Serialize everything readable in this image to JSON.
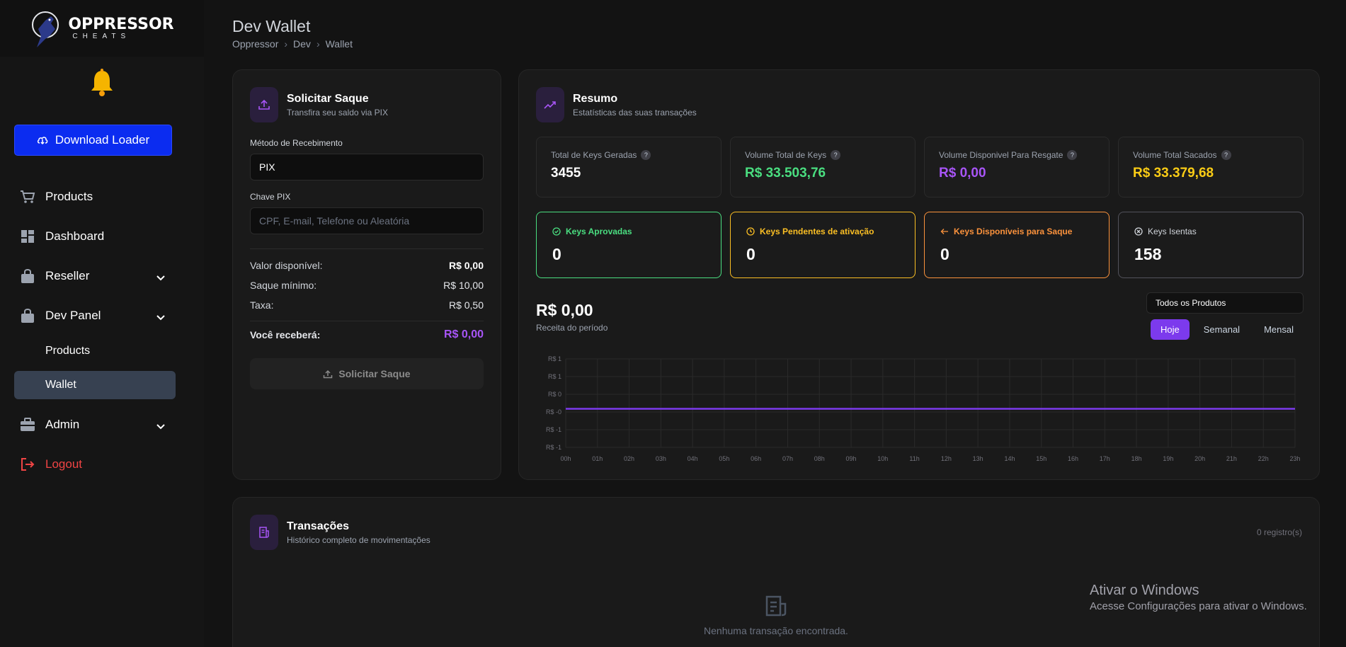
{
  "brand": {
    "title": "OPPRESSOR",
    "subtitle": "CHEATS"
  },
  "sidebar": {
    "download_label": "Download Loader",
    "items": [
      {
        "label": "Products"
      },
      {
        "label": "Dashboard"
      },
      {
        "label": "Reseller"
      },
      {
        "label": "Dev Panel"
      },
      {
        "label": "Admin"
      },
      {
        "label": "Logout"
      }
    ],
    "dev_panel_sub": [
      {
        "label": "Products"
      },
      {
        "label": "Wallet"
      }
    ]
  },
  "header": {
    "title": "Dev Wallet",
    "breadcrumb": [
      "Oppressor",
      "Dev",
      "Wallet"
    ],
    "separator": "›"
  },
  "withdraw": {
    "title": "Solicitar Saque",
    "subtitle": "Transfira seu saldo via PIX",
    "method_label": "Método de Recebimento",
    "method_value": "PIX",
    "key_label": "Chave PIX",
    "key_placeholder": "CPF, E-mail, Telefone ou Aleatória",
    "available_label": "Valor disponível:",
    "available_value": "R$ 0,00",
    "min_label": "Saque mínimo:",
    "min_value": "R$ 10,00",
    "fee_label": "Taxa:",
    "fee_value": "R$ 0,50",
    "receive_label": "Você receberá:",
    "receive_value": "R$ 0,00",
    "button_label": "Solicitar Saque"
  },
  "summary": {
    "title": "Resumo",
    "subtitle": "Estatísticas das suas transações",
    "stats": [
      {
        "label": "Total de Keys Geradas",
        "value": "3455",
        "color": "#ffffff"
      },
      {
        "label": "Volume Total de Keys",
        "value": "R$ 33.503,76",
        "color": "#4ade80"
      },
      {
        "label": "Volume Disponivel Para Resgate",
        "value": "R$ 0,00",
        "color": "#a855f7"
      },
      {
        "label": "Volume Total Sacados",
        "value": "R$ 33.379,68",
        "color": "#facc15"
      }
    ],
    "key_boxes": [
      {
        "label": "Keys Aprovadas",
        "value": "0",
        "color": "#4ade80",
        "icon": "check-circle-icon"
      },
      {
        "label": "Keys Pendentes de ativação",
        "value": "0",
        "color": "#fbbf24",
        "icon": "clock-icon"
      },
      {
        "label": "Keys Disponíveis para Saque",
        "value": "0",
        "color": "#fb923c",
        "icon": "arrow-left-icon"
      },
      {
        "label": "Keys Isentas",
        "value": "158",
        "color": "#d1d5db",
        "icon": "x-circle-icon"
      }
    ],
    "revenue_value": "R$ 0,00",
    "revenue_label": "Receita do período",
    "product_select": "Todos os Produtos",
    "periods": [
      "Hoje",
      "Semanal",
      "Mensal"
    ],
    "active_period": "Hoje"
  },
  "chart_data": {
    "type": "line",
    "x": [
      "00h",
      "01h",
      "02h",
      "03h",
      "04h",
      "05h",
      "06h",
      "07h",
      "08h",
      "09h",
      "10h",
      "11h",
      "12h",
      "13h",
      "14h",
      "15h",
      "16h",
      "17h",
      "18h",
      "19h",
      "20h",
      "21h",
      "22h",
      "23h"
    ],
    "series": [
      {
        "values": [
          0,
          0,
          0,
          0,
          0,
          0,
          0,
          0,
          0,
          0,
          0,
          0,
          0,
          0,
          0,
          0,
          0,
          0,
          0,
          0,
          0,
          0,
          0,
          0
        ],
        "color": "#7c3aed"
      }
    ],
    "y_ticks": [
      "R$ 1",
      "R$ 1",
      "R$ 0",
      "R$ -0",
      "R$ -1",
      "R$ -1"
    ],
    "ylim": [
      -1,
      1
    ],
    "grid": true
  },
  "transactions": {
    "title": "Transações",
    "subtitle": "Histórico completo de movimentações",
    "count": "0 registro(s)",
    "empty": "Nenhuma transação encontrada."
  },
  "windows": {
    "title": "Ativar o Windows",
    "subtitle": "Acesse Configurações para ativar o Windows."
  }
}
